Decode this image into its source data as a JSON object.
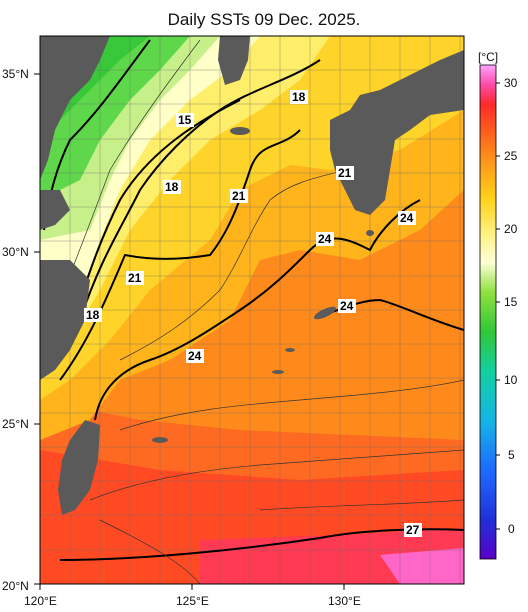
{
  "title": "Daily SSTs 09 Dec. 2025.",
  "lat_labels": [
    "35°N",
    "30°N",
    "25°N",
    "20°N"
  ],
  "lon_labels": [
    "120°E",
    "125°E",
    "130°E"
  ],
  "colorbar": {
    "unit": "[°C]",
    "ticks": [
      "30",
      "25",
      "20",
      "15",
      "10",
      "5",
      "0"
    ]
  },
  "isotherm_labels": [
    "15",
    "18",
    "18",
    "18",
    "21",
    "21",
    "21",
    "24",
    "24",
    "24",
    "24",
    "27"
  ],
  "colors": {
    "land": "#5a5a5a",
    "warm": "#ff4d2e",
    "mid": "#ff8c1a",
    "cool": "#ffe04a",
    "cold": "#3dcf3a"
  }
}
